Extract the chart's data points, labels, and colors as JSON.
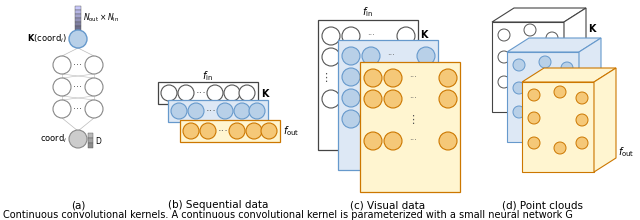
{
  "fig_width": 6.4,
  "fig_height": 2.2,
  "dpi": 100,
  "bg_color": "#ffffff",
  "caption": "Continuous convolutional kernels. A continuous convolutional kernel is parameterized with a small neural network G",
  "caption_fontsize": 7.0,
  "labels": {
    "a": "(a)",
    "b": "(b) Sequential data",
    "c": "(c) Visual data",
    "d": "(d) Point clouds"
  },
  "label_fontsize": 7.5,
  "colors": {
    "blue_fill": "#b8d0e8",
    "blue_stroke": "#6699cc",
    "blue_face": "#dde8f5",
    "orange_fill": "#f5c878",
    "orange_stroke": "#cc7700",
    "orange_face": "#fff5d0",
    "gray_fill": "#cccccc",
    "gray_stroke": "#888888",
    "dark_gray": "#555555",
    "white": "#ffffff",
    "black": "#000000",
    "box_edge": "#444444",
    "network_line": "#bbbbbb"
  }
}
